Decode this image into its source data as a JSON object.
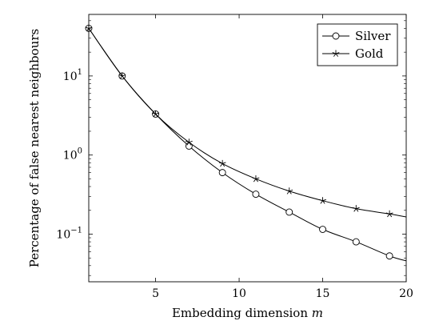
{
  "chart_data": {
    "type": "line",
    "title": "",
    "xlabel": "Embedding dimension m",
    "xlabel_text": "Embedding dimension ",
    "xlabel_var": "m",
    "ylabel": "Percentage of false nearest neighbours",
    "xlim": [
      1,
      20
    ],
    "ylim": [
      0.025,
      60
    ],
    "yscale": "log",
    "grid": false,
    "legend_position": "top-right",
    "x_ticks": [
      5,
      10,
      15,
      20
    ],
    "x_tick_labels": [
      "5",
      "10",
      "15",
      "20"
    ],
    "y_ticks": [
      {
        "value": 0.1,
        "base": "10",
        "exp": "−1"
      },
      {
        "value": 1,
        "base": "10",
        "exp": "0"
      },
      {
        "value": 10,
        "base": "10",
        "exp": "1"
      }
    ],
    "series": [
      {
        "name": "Silver",
        "marker": "circle",
        "color": "#000000",
        "x": [
          1,
          3,
          5,
          7,
          9,
          11,
          13,
          15,
          17,
          19
        ],
        "y": [
          40,
          10,
          3.3,
          1.3,
          0.6,
          0.32,
          0.19,
          0.115,
          0.08,
          0.053
        ],
        "curve_end": {
          "x": 20,
          "y": 0.046
        }
      },
      {
        "name": "Gold",
        "marker": "star",
        "color": "#000000",
        "x": [
          1,
          3,
          5,
          7,
          9,
          11,
          13,
          15,
          17,
          19
        ],
        "y": [
          40,
          10,
          3.3,
          1.45,
          0.78,
          0.5,
          0.35,
          0.265,
          0.21,
          0.18
        ],
        "curve_end": {
          "x": 20,
          "y": 0.165
        }
      }
    ]
  }
}
